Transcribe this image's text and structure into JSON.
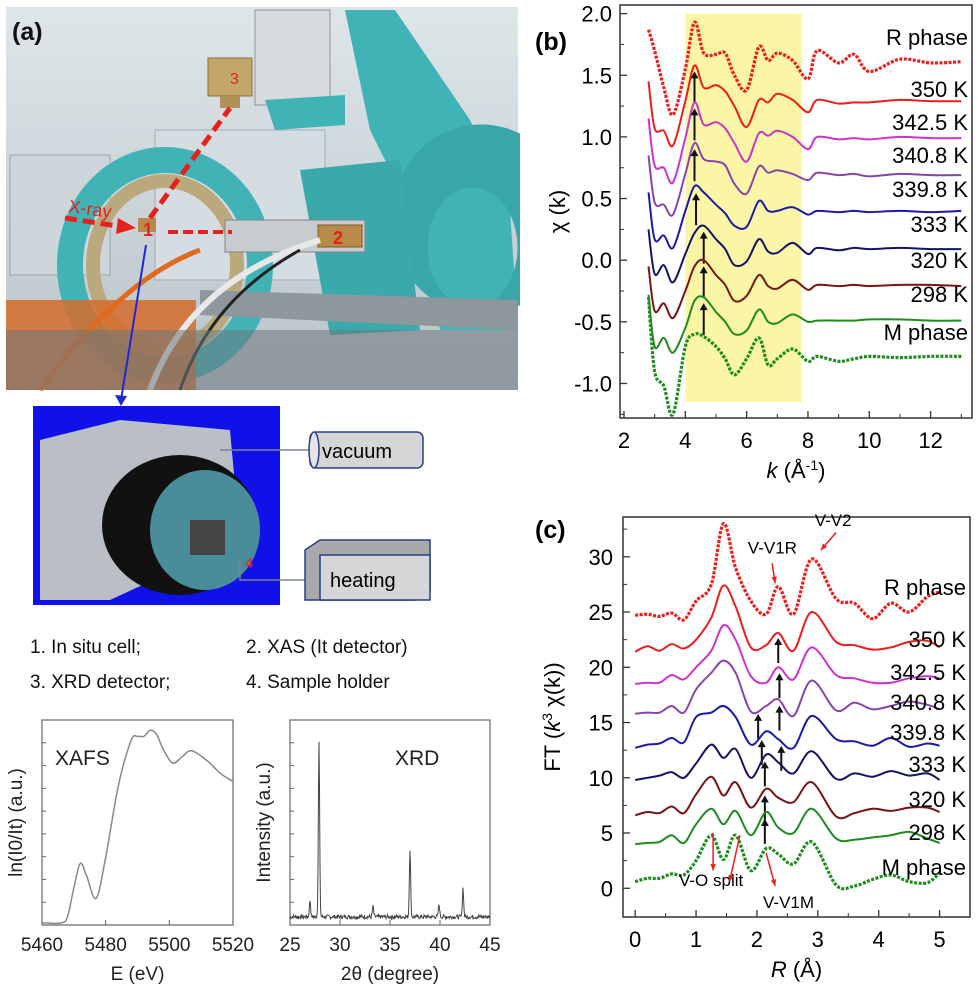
{
  "panel_labels": {
    "a": "(a)",
    "b": "(b)",
    "c": "(c)"
  },
  "photo": {
    "xray_label": "X-ray",
    "markers": [
      "1",
      "2",
      "3",
      "4"
    ],
    "inset_tags": {
      "vacuum": "vacuum",
      "heating": "heating"
    },
    "colors": {
      "beam": "#e8201c",
      "pointer": "#1a2bd6",
      "inset_bg": "#1010e8",
      "machine": "#3fb3b6"
    }
  },
  "legend_lines": [
    {
      "left": "1. In situ cell;",
      "right": "2. XAS (It detector)"
    },
    {
      "left": "3. XRD detector;",
      "right": "4. Sample holder"
    }
  ],
  "chart_data": [
    {
      "id": "xafs",
      "type": "line",
      "title": "XAFS",
      "xlabel": "E (eV)",
      "ylabel": "ln(I0/It) (a.u.)",
      "xlim": [
        5460,
        5520
      ],
      "ylim": [
        0,
        1
      ],
      "xticks": [
        5460,
        5480,
        5500,
        5520
      ],
      "color": "#888888",
      "x": [
        5460,
        5466,
        5468,
        5470,
        5472,
        5474,
        5477,
        5480,
        5484,
        5488,
        5490,
        5492,
        5494,
        5496,
        5498,
        5501,
        5504,
        5507,
        5512,
        5516,
        5520
      ],
      "y": [
        0.01,
        0.01,
        0.04,
        0.18,
        0.3,
        0.24,
        0.13,
        0.33,
        0.68,
        0.9,
        0.92,
        0.92,
        0.95,
        0.93,
        0.86,
        0.79,
        0.82,
        0.85,
        0.8,
        0.74,
        0.7
      ]
    },
    {
      "id": "xrd",
      "type": "line",
      "title": "XRD",
      "xlabel": "2θ (degree)",
      "ylabel": "Intensity (a.u.)",
      "xlim": [
        25,
        45
      ],
      "ylim": [
        0,
        1
      ],
      "xticks": [
        25,
        30,
        35,
        40,
        45
      ],
      "color": "#444444",
      "baseline": 0.04,
      "peaks": [
        {
          "x": 27.0,
          "height": 0.08
        },
        {
          "x": 27.9,
          "height": 0.85
        },
        {
          "x": 33.3,
          "height": 0.05
        },
        {
          "x": 37.0,
          "height": 0.33
        },
        {
          "x": 39.9,
          "height": 0.06
        },
        {
          "x": 42.3,
          "height": 0.14
        }
      ]
    },
    {
      "id": "chi_k",
      "type": "line",
      "xlabel": "k (Å-1)",
      "xlabel_parts": {
        "k": "k",
        "unit_open": " (Å",
        "sup": "-1",
        "unit_close": ")"
      },
      "ylabel": "χ (k)",
      "xlim": [
        1.87,
        13.35
      ],
      "ylim": [
        -1.28,
        2.07
      ],
      "xticks": [
        2,
        4,
        6,
        8,
        10,
        12
      ],
      "yticks": [
        "2.0",
        "1.5",
        "1.0",
        "0.5",
        "0.0",
        "-0.5",
        "-1.0"
      ],
      "highlight_k_range": [
        4.0,
        7.8
      ],
      "highlight_color": "#fbf6a6",
      "x": [
        2.8,
        3.0,
        3.3,
        3.6,
        4.0,
        4.3,
        4.6,
        5.0,
        5.3,
        5.6,
        6.0,
        6.4,
        6.7,
        7.0,
        7.5,
        8.0,
        8.3,
        9.0,
        9.5,
        10.0,
        11.0,
        12.0,
        13.0
      ],
      "series": [
        {
          "name": "R phase",
          "color": "#ee1c1c",
          "dotted": true,
          "arrow_k": null,
          "values": [
            1.87,
            1.7,
            1.4,
            1.18,
            1.55,
            1.93,
            1.68,
            1.67,
            1.68,
            1.5,
            1.38,
            1.73,
            1.62,
            1.68,
            1.62,
            1.47,
            1.7,
            1.6,
            1.67,
            1.53,
            1.63,
            1.6,
            1.61
          ]
        },
        {
          "name": "350 K",
          "color": "#ee1c1c",
          "dotted": false,
          "arrow_k": 4.3,
          "values": [
            1.45,
            1.07,
            1.05,
            0.93,
            1.29,
            1.58,
            1.4,
            1.42,
            1.37,
            1.25,
            1.08,
            1.3,
            1.28,
            1.35,
            1.3,
            1.2,
            1.3,
            1.27,
            1.28,
            1.28,
            1.3,
            1.29,
            1.29
          ]
        },
        {
          "name": "342.5 K",
          "color": "#cc33cc",
          "dotted": false,
          "arrow_k": 4.3,
          "values": [
            1.15,
            0.77,
            0.75,
            0.63,
            0.99,
            1.28,
            1.1,
            1.12,
            1.07,
            0.95,
            0.8,
            1.03,
            1.01,
            1.05,
            1.0,
            0.9,
            1.0,
            0.98,
            0.99,
            0.98,
            1.0,
            0.99,
            0.99
          ]
        },
        {
          "name": "340.8 K",
          "color": "#8844aa",
          "dotted": false,
          "arrow_k": 4.3,
          "values": [
            0.85,
            0.47,
            0.45,
            0.37,
            0.7,
            0.95,
            0.82,
            0.8,
            0.77,
            0.62,
            0.54,
            0.76,
            0.71,
            0.73,
            0.7,
            0.65,
            0.71,
            0.69,
            0.7,
            0.68,
            0.7,
            0.69,
            0.69
          ]
        },
        {
          "name": "339.8 K",
          "color": "#1a1aaa",
          "dotted": false,
          "arrow_k": 4.35,
          "values": [
            0.55,
            0.17,
            0.2,
            0.1,
            0.4,
            0.6,
            0.55,
            0.45,
            0.38,
            0.28,
            0.27,
            0.48,
            0.4,
            0.4,
            0.43,
            0.37,
            0.4,
            0.39,
            0.4,
            0.39,
            0.4,
            0.39,
            0.4
          ]
        },
        {
          "name": "333 K",
          "color": "#141464",
          "dotted": false,
          "arrow_k": 4.6,
          "values": [
            0.25,
            -0.11,
            -0.04,
            -0.18,
            0.05,
            0.22,
            0.28,
            0.17,
            0.09,
            -0.04,
            -0.01,
            0.17,
            0.07,
            0.06,
            0.14,
            0.05,
            0.1,
            0.08,
            0.1,
            0.09,
            0.1,
            0.09,
            0.09
          ]
        },
        {
          "name": "320 K",
          "color": "#7a1414",
          "dotted": false,
          "arrow_k": 4.6,
          "values": [
            -0.05,
            -0.41,
            -0.35,
            -0.47,
            -0.25,
            -0.05,
            0.0,
            -0.12,
            -0.2,
            -0.33,
            -0.29,
            -0.12,
            -0.21,
            -0.23,
            -0.16,
            -0.24,
            -0.2,
            -0.21,
            -0.2,
            -0.21,
            -0.2,
            -0.2,
            -0.21
          ]
        },
        {
          "name": "298 K",
          "color": "#1f8c1f",
          "dotted": false,
          "arrow_k": 4.6,
          "values": [
            -0.28,
            -0.7,
            -0.63,
            -0.75,
            -0.55,
            -0.33,
            -0.3,
            -0.42,
            -0.5,
            -0.6,
            -0.57,
            -0.4,
            -0.5,
            -0.51,
            -0.44,
            -0.5,
            -0.49,
            -0.49,
            -0.49,
            -0.48,
            -0.48,
            -0.49,
            -0.49
          ]
        },
        {
          "name": "M phase",
          "color": "#1f8c1f",
          "dotted": true,
          "arrow_k": null,
          "values": [
            -0.3,
            -0.9,
            -1.02,
            -1.25,
            -0.7,
            -0.6,
            -0.62,
            -0.7,
            -0.8,
            -0.93,
            -0.8,
            -0.63,
            -0.85,
            -0.8,
            -0.72,
            -0.82,
            -0.78,
            -0.82,
            -0.8,
            -0.78,
            -0.79,
            -0.78,
            -0.78
          ]
        }
      ]
    },
    {
      "id": "ft_r",
      "type": "line",
      "xlabel": "R (Å)",
      "xlabel_parts": {
        "r": "R",
        "unit": " (Å)"
      },
      "ylabel": "FT (k3 χ(k))",
      "ylabel_parts": {
        "open": "FT (",
        "k": "k",
        "sup": "3",
        "rest": " χ(k))"
      },
      "xlim": [
        -0.2,
        5.5
      ],
      "ylim": [
        -2.6,
        33.6
      ],
      "xticks": [
        0,
        1,
        2,
        3,
        4,
        5
      ],
      "yticks": [
        0,
        5,
        10,
        15,
        20,
        25,
        30
      ],
      "x": [
        0,
        0.2,
        0.4,
        0.6,
        0.8,
        1.0,
        1.25,
        1.45,
        1.65,
        1.9,
        2.15,
        2.35,
        2.6,
        2.9,
        3.3,
        3.6,
        3.9,
        4.2,
        4.5,
        4.8,
        5.0
      ],
      "series": [
        {
          "name": "R phase",
          "color": "#ee1c1c",
          "dotted": true,
          "arrow_r": [],
          "values": [
            24.7,
            24.8,
            24.6,
            24.9,
            24.3,
            26,
            27.5,
            33,
            29,
            26,
            24.8,
            27.3,
            24.8,
            29.8,
            26.2,
            25.8,
            24.4,
            25.8,
            25,
            26.4,
            26.8
          ]
        },
        {
          "name": "350 K",
          "color": "#ee1c1c",
          "dotted": false,
          "arrow_r": [
            2.35
          ],
          "values": [
            21.4,
            21.9,
            21.5,
            22.1,
            21.7,
            22.5,
            24.5,
            27.4,
            25.5,
            21.8,
            22,
            23.1,
            21.5,
            25,
            22.3,
            22,
            21.6,
            21.8,
            22.3,
            22.4,
            21.8
          ]
        },
        {
          "name": "342.5 K",
          "color": "#cc33cc",
          "dotted": false,
          "arrow_r": [
            2.37
          ],
          "values": [
            18.5,
            18.6,
            18.6,
            19.3,
            18.9,
            20,
            21.5,
            23.8,
            22.5,
            19.2,
            18.6,
            20,
            18.9,
            21.8,
            19.3,
            19,
            18.6,
            18.6,
            19,
            19.2,
            19
          ]
        },
        {
          "name": "340.8 K",
          "color": "#8844aa",
          "dotted": false,
          "arrow_r": [
            2.02,
            2.37
          ],
          "values": [
            15.8,
            15.9,
            15.9,
            16.5,
            15.9,
            18,
            19.5,
            20.6,
            19.5,
            16,
            16.5,
            17.1,
            15.6,
            18.8,
            16.1,
            16.8,
            16.2,
            16.5,
            16.9,
            16.6,
            16.2
          ]
        },
        {
          "name": "339.8 K",
          "color": "#1a1aaa",
          "dotted": false,
          "arrow_r": [
            2.08,
            2.4
          ],
          "values": [
            12.7,
            13,
            13.1,
            13.6,
            13.2,
            15.5,
            15.9,
            16.5,
            15.5,
            13,
            14.2,
            13.5,
            12.7,
            15.6,
            13.5,
            13.3,
            12.9,
            13.6,
            12.8,
            13.1,
            12.9
          ]
        },
        {
          "name": "333 K",
          "color": "#141464",
          "dotted": false,
          "arrow_r": [
            2.13
          ],
          "values": [
            9.8,
            10,
            10.2,
            10.5,
            10,
            11.3,
            13,
            11.8,
            12.6,
            10,
            12.1,
            11.4,
            10.4,
            12.4,
            9.9,
            10.4,
            10.1,
            10.6,
            10.2,
            10.4,
            9.8
          ]
        },
        {
          "name": "320 K",
          "color": "#7a1414",
          "dotted": false,
          "arrow_r": [
            2.13
          ],
          "values": [
            6.6,
            6.9,
            6.8,
            7.4,
            6.8,
            8.5,
            10.1,
            8.4,
            9.6,
            7.3,
            9,
            8.2,
            7.8,
            9.6,
            6.5,
            6.8,
            7.2,
            7,
            7.3,
            7.3,
            6.9
          ]
        },
        {
          "name": "298 K",
          "color": "#1f8c1f",
          "dotted": false,
          "arrow_r": [
            2.13
          ],
          "values": [
            4,
            4.1,
            4.2,
            4.8,
            4.1,
            5.8,
            7.2,
            5.8,
            7,
            4.8,
            6.9,
            5.5,
            5,
            7.2,
            4.5,
            4.4,
            4.6,
            4.8,
            5.1,
            4.5,
            4.1
          ]
        },
        {
          "name": "M phase",
          "color": "#1f8c1f",
          "dotted": true,
          "arrow_r": [],
          "values": [
            0.6,
            0.9,
            0.9,
            1.3,
            1.2,
            2.5,
            4.8,
            2.6,
            4.8,
            1.6,
            3.6,
            3.1,
            2.2,
            4.2,
            0.3,
            0.2,
            0.8,
            1.2,
            0.6,
            0.5,
            1.4
          ]
        }
      ],
      "annotations": [
        {
          "text": "V-V1R",
          "arrow_to": [
            2.3,
            27.6
          ]
        },
        {
          "text": "V-V2",
          "arrow_to": [
            3.05,
            30.6
          ]
        },
        {
          "text": "V-O split",
          "arrow_to": [
            [
              1.28,
              3.6
            ],
            [
              1.55,
              2.6
            ]
          ]
        },
        {
          "text": "V-V1M",
          "arrow_to": [
            2.3,
            0.2
          ]
        }
      ],
      "annotation_color": "#ee1c1c"
    }
  ]
}
